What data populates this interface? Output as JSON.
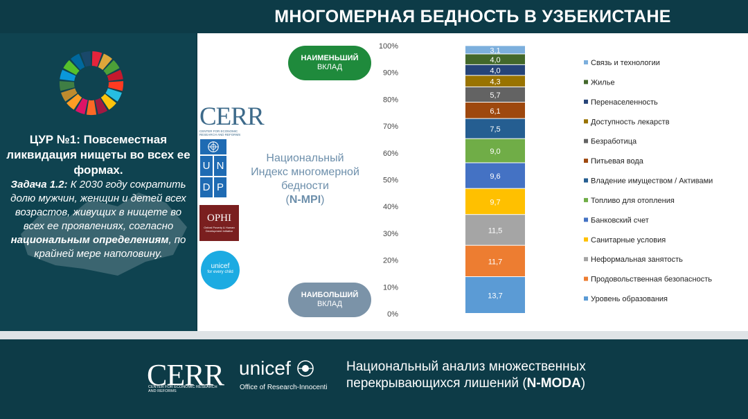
{
  "header": {
    "title": "МНОГОМЕРНАЯ БЕДНОСТЬ В УЗБЕКИСТАНЕ"
  },
  "sidebar": {
    "heading": "ЦУР №1: Повсеместная ликвидация нищеты во всех ее формах.",
    "task_label": "Задача 1.2:",
    "task_text_1": "К 2030 году сократить долю мужчин, женщин и детей всех возрастов, живущих в нищете во всех ее проявлениях, согласно",
    "task_bold": "национальным определениям",
    "task_text_2": ", по крайней мере наполовину."
  },
  "logos": {
    "cerr": "CERR",
    "cerr_sub": "CENTER FOR ECONOMIC RESEARCH AND REFORMS",
    "undp_letters": [
      "U",
      "N",
      "D",
      "P"
    ],
    "ophi": "OPHI",
    "ophi_sub": "Oxford Poverty & Human Development Initiative",
    "unicef": "unicef",
    "unicef_sub": "for every child"
  },
  "pills": {
    "top_line1": "НАИМЕНЬШИЙ",
    "top_line2": "ВКЛАД",
    "bottom_line1": "НАИБОЛЬШИЙ",
    "bottom_line2": "ВКЛАД"
  },
  "index_label": {
    "line1": "Национальный",
    "line2": "Индекс многомерной",
    "line3": "бедности",
    "open": "(",
    "abbr": "N-MPI",
    "close": ")"
  },
  "chart_data": {
    "type": "bar",
    "stacked": true,
    "ylim": [
      0,
      100
    ],
    "yticks": [
      "0%",
      "10%",
      "20%",
      "30%",
      "40%",
      "50%",
      "60%",
      "70%",
      "80%",
      "90%",
      "100%"
    ],
    "legend_position": "right",
    "series": [
      {
        "name": "Уровень образования",
        "value": 13.7,
        "label": "13,7",
        "color": "#5b9bd5"
      },
      {
        "name": "Продовольственная безопасность",
        "value": 11.7,
        "label": "11,7",
        "color": "#ed7d31"
      },
      {
        "name": "Неформальная занятость",
        "value": 11.5,
        "label": "11,5",
        "color": "#a5a5a5"
      },
      {
        "name": "Санитарные условия",
        "value": 9.7,
        "label": "9,7",
        "color": "#ffc000"
      },
      {
        "name": "Банковский счет",
        "value": 9.6,
        "label": "9,6",
        "color": "#4472c4"
      },
      {
        "name": "Топливо для отопления",
        "value": 9.0,
        "label": "9,0",
        "color": "#70ad47"
      },
      {
        "name": "Владение имуществом / Активами",
        "value": 7.5,
        "label": "7,5",
        "color": "#255e91"
      },
      {
        "name": "Питьевая вода",
        "value": 6.1,
        "label": "6,1",
        "color": "#9e480e"
      },
      {
        "name": "Безработица",
        "value": 5.7,
        "label": "5,7",
        "color": "#636363"
      },
      {
        "name": "Доступность лекарств",
        "value": 4.3,
        "label": "4,3",
        "color": "#997300"
      },
      {
        "name": "Перенаселенность",
        "value": 4.0,
        "label": "4,0",
        "color": "#264478"
      },
      {
        "name": "Жилье",
        "value": 4.0,
        "label": "4,0",
        "color": "#43682b"
      },
      {
        "name": "Связь и технологии",
        "value": 3.1,
        "label": "3,1",
        "color": "#7cafdd"
      }
    ]
  },
  "footer": {
    "cerr": "CERR",
    "cerr_sub": "CENTER FOR ECONOMIC RESEARCH AND REFORMS",
    "unicef": "unicef",
    "unicef_sub": "Office of Research-Innocenti",
    "title_line1": "Национальный анализ множественных",
    "title_line2_prefix": "перекрывающихся лишений (",
    "title_line2_bold": "N-MODA",
    "title_line2_suffix": ")"
  }
}
